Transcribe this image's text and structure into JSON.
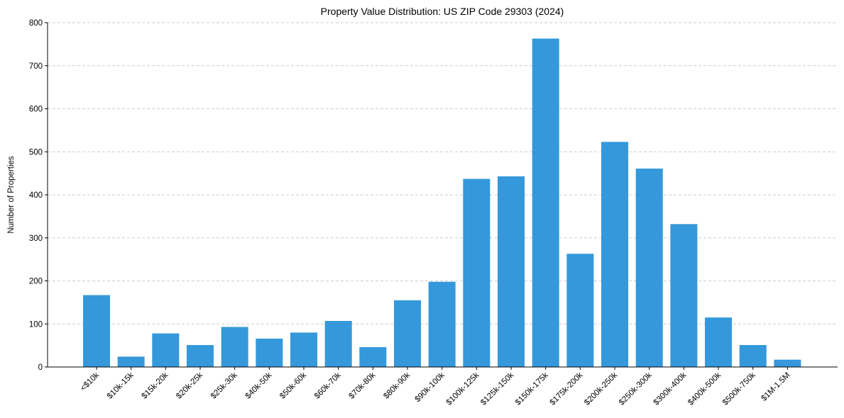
{
  "chart_data": {
    "type": "bar",
    "title": "Property Value Distribution: US ZIP Code 29303 (2024)",
    "xlabel": "",
    "ylabel": "Number of Properties",
    "ylim": [
      0,
      800
    ],
    "yticks": [
      0,
      100,
      200,
      300,
      400,
      500,
      600,
      700,
      800
    ],
    "grid": "y-dashed",
    "bar_color": "#3498db",
    "categories": [
      "<$10k",
      "$10k-15k",
      "$15k-20k",
      "$20k-25k",
      "$25k-30k",
      "$40k-50k",
      "$50k-60k",
      "$60k-70k",
      "$70k-80k",
      "$80k-90k",
      "$90k-100k",
      "$100k-125k",
      "$125k-150k",
      "$150k-175k",
      "$175k-200k",
      "$200k-250k",
      "$250k-300k",
      "$300k-400k",
      "$400k-500k",
      "$500k-750k",
      "$1M-1.5M"
    ],
    "values": [
      167,
      24,
      78,
      51,
      93,
      66,
      80,
      107,
      46,
      155,
      198,
      437,
      443,
      763,
      263,
      523,
      461,
      332,
      115,
      51,
      17
    ]
  }
}
